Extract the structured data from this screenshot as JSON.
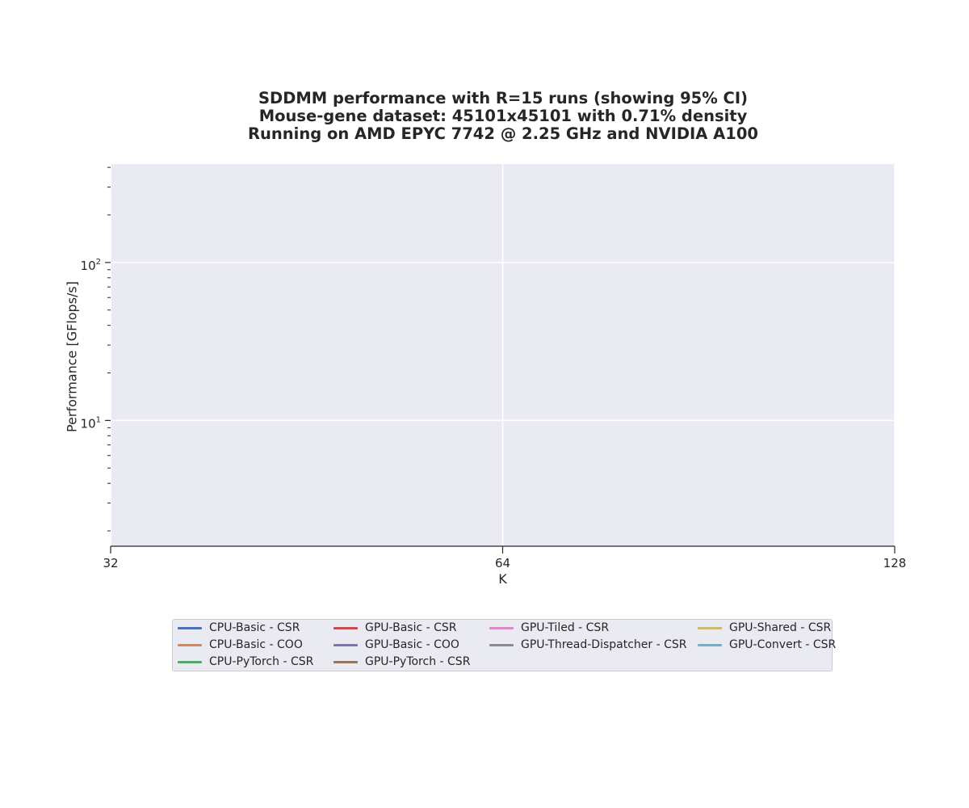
{
  "chart_data": {
    "type": "line",
    "title_lines": [
      "SDDMM performance with R=15 runs (showing 95% CI)",
      "Mouse-gene dataset: 45101x45101 with 0.71% density",
      "Running on AMD EPYC 7742 @ 2.25 GHz and NVIDIA A100"
    ],
    "xlabel": "K",
    "ylabel": "Performance [GFlops/s]",
    "x_scale": "log2",
    "y_scale": "log10",
    "xlim": [
      32,
      128
    ],
    "ylim": [
      1.6,
      420
    ],
    "x_ticks": [
      32,
      64,
      128
    ],
    "y_major_ticks": [
      {
        "value": 10,
        "base": "10",
        "exp": "1"
      },
      {
        "value": 100,
        "base": "10",
        "exp": "2"
      }
    ],
    "y_minor_ticks": [
      2,
      3,
      4,
      5,
      6,
      7,
      8,
      9,
      20,
      30,
      40,
      50,
      60,
      70,
      80,
      90,
      200,
      300,
      400
    ],
    "grid": true,
    "legend_position": "below plot, centered",
    "series": [
      {
        "name": "CPU-Basic - CSR",
        "color": "#4c72b0",
        "values": []
      },
      {
        "name": "CPU-Basic - COO",
        "color": "#dd8452",
        "values": []
      },
      {
        "name": "CPU-PyTorch - CSR",
        "color": "#55a868",
        "values": []
      },
      {
        "name": "GPU-Basic - CSR",
        "color": "#c44e52",
        "values": []
      },
      {
        "name": "GPU-Basic - COO",
        "color": "#8172b3",
        "values": []
      },
      {
        "name": "GPU-PyTorch - CSR",
        "color": "#937860",
        "values": []
      },
      {
        "name": "GPU-Tiled - CSR",
        "color": "#da8bc3",
        "values": []
      },
      {
        "name": "GPU-Thread-Dispatcher - CSR",
        "color": "#8c8c8c",
        "values": []
      },
      {
        "name": "GPU-Shared - CSR",
        "color": "#ccb974",
        "values": []
      },
      {
        "name": "GPU-Convert - CSR",
        "color": "#64b5cd",
        "values": []
      }
    ]
  },
  "colors": {
    "plot_background": "#eaeaf2",
    "grid": "#ffffff",
    "axis": "#262626"
  }
}
